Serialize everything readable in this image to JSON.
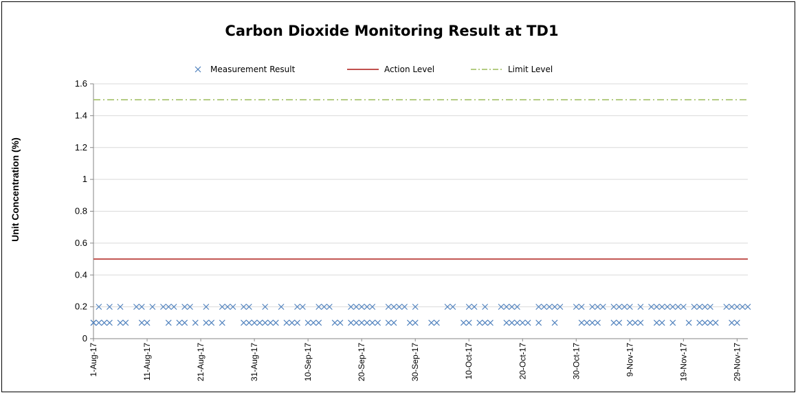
{
  "chart_data": {
    "type": "scatter",
    "title": "Carbon Dioxide Monitoring Result at TD1",
    "xlabel": "",
    "ylabel": "Unit Concentration (%)",
    "ylim": [
      0,
      1.6
    ],
    "yticks": [
      "0",
      "0.2",
      "0.4",
      "0.6",
      "0.8",
      "1",
      "1.2",
      "1.4",
      "1.6"
    ],
    "xlim": [
      "1-Aug-17",
      "1-Dec-17"
    ],
    "xticks": [
      "1-Aug-17",
      "11-Aug-17",
      "21-Aug-17",
      "31-Aug-17",
      "10-Sep-17",
      "20-Sep-17",
      "30-Sep-17",
      "10-Oct-17",
      "20-Oct-17",
      "30-Oct-17",
      "9-Nov-17",
      "19-Nov-17",
      "29-Nov-17"
    ],
    "grid": true,
    "legend_position": "top",
    "series": [
      {
        "name": "Measurement Result",
        "type": "scatter",
        "color": "#4F81BD",
        "marker": "x",
        "points": [
          [
            "1-Aug-17",
            0.1
          ],
          [
            "1-Aug-17",
            0.1
          ],
          [
            "2-Aug-17",
            0.1
          ],
          [
            "2-Aug-17",
            0.2
          ],
          [
            "3-Aug-17",
            0.1
          ],
          [
            "4-Aug-17",
            0.1
          ],
          [
            "4-Aug-17",
            0.2
          ],
          [
            "6-Aug-17",
            0.2
          ],
          [
            "6-Aug-17",
            0.1
          ],
          [
            "7-Aug-17",
            0.1
          ],
          [
            "9-Aug-17",
            0.2
          ],
          [
            "10-Aug-17",
            0.2
          ],
          [
            "10-Aug-17",
            0.1
          ],
          [
            "11-Aug-17",
            0.1
          ],
          [
            "12-Aug-17",
            0.2
          ],
          [
            "14-Aug-17",
            0.2
          ],
          [
            "15-Aug-17",
            0.2
          ],
          [
            "15-Aug-17",
            0.1
          ],
          [
            "16-Aug-17",
            0.2
          ],
          [
            "17-Aug-17",
            0.1
          ],
          [
            "18-Aug-17",
            0.1
          ],
          [
            "18-Aug-17",
            0.2
          ],
          [
            "19-Aug-17",
            0.2
          ],
          [
            "20-Aug-17",
            0.1
          ],
          [
            "22-Aug-17",
            0.2
          ],
          [
            "22-Aug-17",
            0.1
          ],
          [
            "23-Aug-17",
            0.1
          ],
          [
            "25-Aug-17",
            0.1
          ],
          [
            "25-Aug-17",
            0.2
          ],
          [
            "26-Aug-17",
            0.2
          ],
          [
            "27-Aug-17",
            0.2
          ],
          [
            "29-Aug-17",
            0.2
          ],
          [
            "29-Aug-17",
            0.1
          ],
          [
            "30-Aug-17",
            0.2
          ],
          [
            "30-Aug-17",
            0.1
          ],
          [
            "31-Aug-17",
            0.1
          ],
          [
            "1-Sep-17",
            0.1
          ],
          [
            "2-Sep-17",
            0.1
          ],
          [
            "2-Sep-17",
            0.2
          ],
          [
            "3-Sep-17",
            0.1
          ],
          [
            "4-Sep-17",
            0.1
          ],
          [
            "5-Sep-17",
            0.2
          ],
          [
            "6-Sep-17",
            0.1
          ],
          [
            "7-Sep-17",
            0.1
          ],
          [
            "8-Sep-17",
            0.1
          ],
          [
            "8-Sep-17",
            0.2
          ],
          [
            "9-Sep-17",
            0.2
          ],
          [
            "10-Sep-17",
            0.1
          ],
          [
            "11-Sep-17",
            0.1
          ],
          [
            "12-Sep-17",
            0.1
          ],
          [
            "12-Sep-17",
            0.2
          ],
          [
            "13-Sep-17",
            0.2
          ],
          [
            "14-Sep-17",
            0.2
          ],
          [
            "15-Sep-17",
            0.1
          ],
          [
            "16-Sep-17",
            0.1
          ],
          [
            "18-Sep-17",
            0.2
          ],
          [
            "18-Sep-17",
            0.1
          ],
          [
            "19-Sep-17",
            0.1
          ],
          [
            "19-Sep-17",
            0.2
          ],
          [
            "20-Sep-17",
            0.2
          ],
          [
            "20-Sep-17",
            0.1
          ],
          [
            "21-Sep-17",
            0.1
          ],
          [
            "21-Sep-17",
            0.2
          ],
          [
            "22-Sep-17",
            0.2
          ],
          [
            "22-Sep-17",
            0.1
          ],
          [
            "23-Sep-17",
            0.1
          ],
          [
            "25-Sep-17",
            0.2
          ],
          [
            "25-Sep-17",
            0.1
          ],
          [
            "26-Sep-17",
            0.2
          ],
          [
            "26-Sep-17",
            0.1
          ],
          [
            "27-Sep-17",
            0.2
          ],
          [
            "28-Sep-17",
            0.2
          ],
          [
            "29-Sep-17",
            0.1
          ],
          [
            "30-Sep-17",
            0.2
          ],
          [
            "30-Sep-17",
            0.1
          ],
          [
            "3-Oct-17",
            0.1
          ],
          [
            "4-Oct-17",
            0.1
          ],
          [
            "6-Oct-17",
            0.2
          ],
          [
            "7-Oct-17",
            0.2
          ],
          [
            "9-Oct-17",
            0.1
          ],
          [
            "10-Oct-17",
            0.1
          ],
          [
            "10-Oct-17",
            0.2
          ],
          [
            "11-Oct-17",
            0.2
          ],
          [
            "12-Oct-17",
            0.1
          ],
          [
            "13-Oct-17",
            0.1
          ],
          [
            "13-Oct-17",
            0.2
          ],
          [
            "14-Oct-17",
            0.1
          ],
          [
            "16-Oct-17",
            0.2
          ],
          [
            "17-Oct-17",
            0.2
          ],
          [
            "17-Oct-17",
            0.1
          ],
          [
            "18-Oct-17",
            0.1
          ],
          [
            "18-Oct-17",
            0.2
          ],
          [
            "19-Oct-17",
            0.2
          ],
          [
            "19-Oct-17",
            0.1
          ],
          [
            "20-Oct-17",
            0.1
          ],
          [
            "21-Oct-17",
            0.1
          ],
          [
            "23-Oct-17",
            0.2
          ],
          [
            "23-Oct-17",
            0.1
          ],
          [
            "24-Oct-17",
            0.2
          ],
          [
            "25-Oct-17",
            0.2
          ],
          [
            "26-Oct-17",
            0.2
          ],
          [
            "26-Oct-17",
            0.1
          ],
          [
            "27-Oct-17",
            0.2
          ],
          [
            "30-Oct-17",
            0.2
          ],
          [
            "31-Oct-17",
            0.2
          ],
          [
            "31-Oct-17",
            0.1
          ],
          [
            "1-Nov-17",
            0.1
          ],
          [
            "2-Nov-17",
            0.2
          ],
          [
            "2-Nov-17",
            0.1
          ],
          [
            "3-Nov-17",
            0.2
          ],
          [
            "3-Nov-17",
            0.1
          ],
          [
            "4-Nov-17",
            0.2
          ],
          [
            "6-Nov-17",
            0.2
          ],
          [
            "6-Nov-17",
            0.1
          ],
          [
            "7-Nov-17",
            0.1
          ],
          [
            "7-Nov-17",
            0.2
          ],
          [
            "8-Nov-17",
            0.2
          ],
          [
            "9-Nov-17",
            0.2
          ],
          [
            "9-Nov-17",
            0.1
          ],
          [
            "10-Nov-17",
            0.1
          ],
          [
            "11-Nov-17",
            0.1
          ],
          [
            "11-Nov-17",
            0.2
          ],
          [
            "13-Nov-17",
            0.2
          ],
          [
            "14-Nov-17",
            0.2
          ],
          [
            "14-Nov-17",
            0.1
          ],
          [
            "15-Nov-17",
            0.1
          ],
          [
            "15-Nov-17",
            0.2
          ],
          [
            "16-Nov-17",
            0.2
          ],
          [
            "17-Nov-17",
            0.2
          ],
          [
            "17-Nov-17",
            0.1
          ],
          [
            "18-Nov-17",
            0.2
          ],
          [
            "19-Nov-17",
            0.2
          ],
          [
            "20-Nov-17",
            0.1
          ],
          [
            "21-Nov-17",
            0.2
          ],
          [
            "22-Nov-17",
            0.1
          ],
          [
            "22-Nov-17",
            0.2
          ],
          [
            "23-Nov-17",
            0.1
          ],
          [
            "23-Nov-17",
            0.2
          ],
          [
            "24-Nov-17",
            0.1
          ],
          [
            "24-Nov-17",
            0.2
          ],
          [
            "25-Nov-17",
            0.1
          ],
          [
            "27-Nov-17",
            0.2
          ],
          [
            "28-Nov-17",
            0.2
          ],
          [
            "28-Nov-17",
            0.1
          ],
          [
            "29-Nov-17",
            0.1
          ],
          [
            "29-Nov-17",
            0.2
          ],
          [
            "30-Nov-17",
            0.2
          ],
          [
            "1-Dec-17",
            0.2
          ]
        ]
      },
      {
        "name": "Action Level",
        "type": "line",
        "color": "#C0504D",
        "style": "solid",
        "value": 0.5
      },
      {
        "name": "Limit Level",
        "type": "line",
        "color": "#9BBB59",
        "style": "dash-dot",
        "value": 1.5
      }
    ]
  }
}
